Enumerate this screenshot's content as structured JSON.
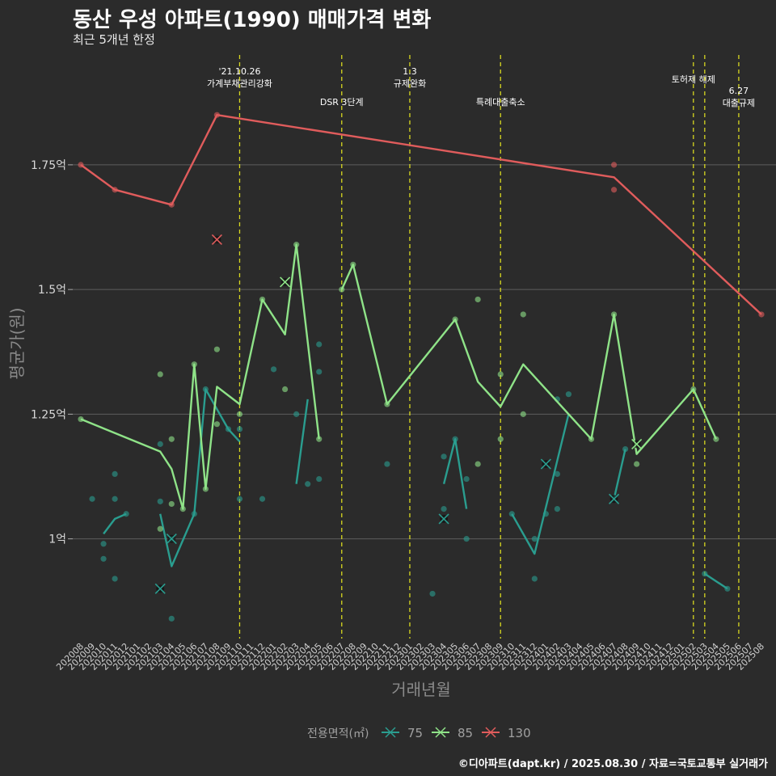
{
  "title": "동산 우성 아파트(1990) 매매가격 변화",
  "subtitle": "최근 5개년 한정",
  "caption": "©디아파트(dapt.kr) / 2025.08.30 / 자료=국토교통부 실거래가",
  "chart_data": {
    "type": "line",
    "xlabel": "거래년월",
    "ylabel": "평균가(원)",
    "ylim": [
      0.8,
      1.98
    ],
    "yticks": [
      {
        "value": 1.0,
        "label": "1억"
      },
      {
        "value": 1.25,
        "label": "1.25억"
      },
      {
        "value": 1.5,
        "label": "1.5억"
      },
      {
        "value": 1.75,
        "label": "1.75억"
      }
    ],
    "x_start": "202008",
    "x_end": "202508",
    "grid": true,
    "legend": {
      "title": "전용면적(㎡)",
      "position": "bottom"
    },
    "series": [
      {
        "name": "75",
        "color": "#2a9d8f",
        "line": [
          [
            [
              202010,
              1.01
            ],
            [
              202011,
              1.04
            ],
            [
              202012,
              1.05
            ]
          ],
          [
            [
              202103,
              1.05
            ],
            [
              202104,
              0.945
            ],
            [
              202106,
              1.05
            ],
            [
              202107,
              1.3
            ],
            [
              202109,
              1.22
            ],
            [
              202110,
              1.195
            ]
          ],
          [
            [
              202203,
              1.11
            ],
            [
              202204,
              1.28
            ]
          ],
          [
            [
              202304,
              1.11
            ],
            [
              202305,
              1.2
            ],
            [
              202306,
              1.06
            ]
          ],
          [
            [
              202310,
              1.05
            ],
            [
              202312,
              0.97
            ],
            [
              202403,
              1.25
            ]
          ],
          [
            [
              202407,
              1.08
            ],
            [
              202408,
              1.18
            ]
          ],
          [
            [
              202503,
              0.93
            ],
            [
              202505,
              0.9
            ]
          ]
        ],
        "points": [
          [
            202009,
            1.08
          ],
          [
            202010,
            0.99
          ],
          [
            202010,
            0.96
          ],
          [
            202011,
            1.13
          ],
          [
            202011,
            1.08
          ],
          [
            202011,
            0.92
          ],
          [
            202012,
            1.05
          ],
          [
            202103,
            1.19
          ],
          [
            202103,
            1.075
          ],
          [
            202104,
            1.0
          ],
          [
            202104,
            0.84
          ],
          [
            202106,
            1.05
          ],
          [
            202107,
            1.3
          ],
          [
            202109,
            1.22
          ],
          [
            202110,
            1.08
          ],
          [
            202110,
            1.22
          ],
          [
            202112,
            1.08
          ],
          [
            202201,
            1.34
          ],
          [
            202203,
            1.25
          ],
          [
            202204,
            1.11
          ],
          [
            202205,
            1.39
          ],
          [
            202205,
            1.335
          ],
          [
            202205,
            1.12
          ],
          [
            202211,
            1.15
          ],
          [
            202303,
            0.89
          ],
          [
            202304,
            1.06
          ],
          [
            202304,
            1.165
          ],
          [
            202305,
            1.2
          ],
          [
            202306,
            1.12
          ],
          [
            202306,
            1.0
          ],
          [
            202310,
            1.05
          ],
          [
            202312,
            1.0
          ],
          [
            202312,
            0.92
          ],
          [
            202401,
            1.05
          ],
          [
            202402,
            1.28
          ],
          [
            202402,
            1.13
          ],
          [
            202402,
            1.06
          ],
          [
            202403,
            1.29
          ],
          [
            202408,
            1.18
          ],
          [
            202503,
            0.93
          ],
          [
            202505,
            0.9
          ]
        ],
        "crosses": [
          [
            202103,
            0.9
          ],
          [
            202104,
            1.0
          ],
          [
            202304,
            1.04
          ],
          [
            202401,
            1.15
          ],
          [
            202407,
            1.08
          ]
        ]
      },
      {
        "name": "85",
        "color": "#8fe388",
        "line": [
          [
            [
              202008,
              1.24
            ],
            [
              202103,
              1.175
            ],
            [
              202104,
              1.14
            ],
            [
              202105,
              1.06
            ],
            [
              202106,
              1.35
            ],
            [
              202107,
              1.1
            ],
            [
              202108,
              1.305
            ],
            [
              202110,
              1.27
            ],
            [
              202112,
              1.48
            ],
            [
              202202,
              1.41
            ],
            [
              202203,
              1.59
            ],
            [
              202205,
              1.2
            ]
          ],
          [
            [
              202207,
              1.5
            ],
            [
              202208,
              1.55
            ],
            [
              202211,
              1.27
            ],
            [
              202305,
              1.44
            ],
            [
              202307,
              1.315
            ],
            [
              202309,
              1.265
            ],
            [
              202311,
              1.35
            ],
            [
              202405,
              1.2
            ],
            [
              202407,
              1.45
            ],
            [
              202409,
              1.17
            ],
            [
              202502,
              1.3
            ],
            [
              202504,
              1.2
            ]
          ]
        ],
        "points": [
          [
            202008,
            1.24
          ],
          [
            202103,
            1.33
          ],
          [
            202103,
            1.02
          ],
          [
            202104,
            1.2
          ],
          [
            202104,
            1.07
          ],
          [
            202105,
            1.06
          ],
          [
            202106,
            1.35
          ],
          [
            202107,
            1.1
          ],
          [
            202108,
            1.38
          ],
          [
            202108,
            1.23
          ],
          [
            202110,
            1.25
          ],
          [
            202112,
            1.48
          ],
          [
            202202,
            1.3
          ],
          [
            202203,
            1.59
          ],
          [
            202205,
            1.2
          ],
          [
            202207,
            1.5
          ],
          [
            202208,
            1.55
          ],
          [
            202211,
            1.27
          ],
          [
            202305,
            1.44
          ],
          [
            202307,
            1.48
          ],
          [
            202307,
            1.15
          ],
          [
            202309,
            1.33
          ],
          [
            202309,
            1.2
          ],
          [
            202311,
            1.45
          ],
          [
            202311,
            1.25
          ],
          [
            202405,
            1.2
          ],
          [
            202407,
            1.45
          ],
          [
            202409,
            1.15
          ],
          [
            202502,
            1.3
          ],
          [
            202504,
            1.2
          ]
        ],
        "crosses": [
          [
            202202,
            1.515
          ],
          [
            202409,
            1.19
          ]
        ]
      },
      {
        "name": "130",
        "color": "#e05c5c",
        "line": [
          [
            [
              202008,
              1.75
            ],
            [
              202011,
              1.7
            ],
            [
              202104,
              1.67
            ],
            [
              202108,
              1.85
            ],
            [
              202407,
              1.725
            ],
            [
              202508,
              1.45
            ]
          ]
        ],
        "points": [
          [
            202008,
            1.75
          ],
          [
            202011,
            1.7
          ],
          [
            202104,
            1.67
          ],
          [
            202108,
            1.85
          ],
          [
            202407,
            1.75
          ],
          [
            202407,
            1.7
          ],
          [
            202508,
            1.45
          ]
        ],
        "crosses": [
          [
            202108,
            1.6
          ]
        ]
      }
    ],
    "events": [
      {
        "month": 202110,
        "lines": [
          "'21.10.26",
          "가계부채관리강화"
        ],
        "row": 0
      },
      {
        "month": 202207,
        "lines": [
          "DSR 3단계"
        ],
        "row": 1
      },
      {
        "month": 202301,
        "lines": [
          "1.3",
          "규제완화"
        ],
        "row": 0
      },
      {
        "month": 202309,
        "lines": [
          "특례대출축소"
        ],
        "row": 1
      },
      {
        "month": 202502,
        "lines": [
          "토허제 해제"
        ],
        "row": 2
      },
      {
        "month": 202503,
        "lines": [],
        "row": 2
      },
      {
        "month": 202506,
        "lines": [
          "6.27",
          "대출규제"
        ],
        "row": 3
      }
    ]
  }
}
